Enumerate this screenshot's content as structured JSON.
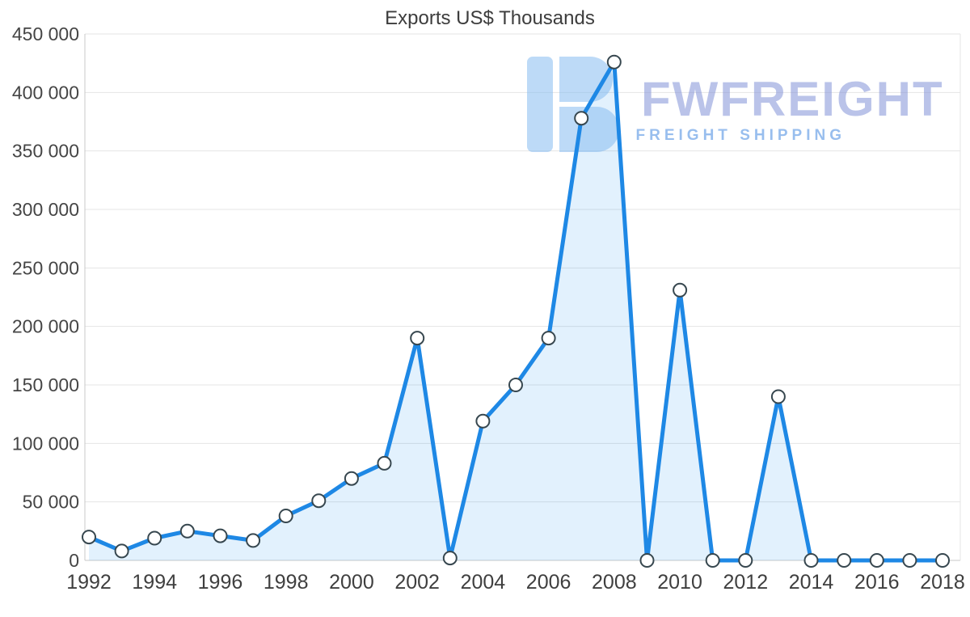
{
  "chart_data": {
    "type": "area",
    "title": "Exports US$ Thousands",
    "x": [
      1992,
      1993,
      1994,
      1995,
      1996,
      1997,
      1998,
      1999,
      2000,
      2001,
      2002,
      2003,
      2004,
      2005,
      2006,
      2007,
      2008,
      2009,
      2010,
      2011,
      2012,
      2013,
      2014,
      2015,
      2016,
      2017,
      2018
    ],
    "values": [
      20000,
      8000,
      19000,
      25000,
      21000,
      17000,
      38000,
      51000,
      70000,
      83000,
      190000,
      2000,
      119000,
      150000,
      190000,
      378000,
      426000,
      0,
      231000,
      0,
      0,
      140000,
      0,
      0,
      0,
      0,
      0
    ],
    "x_ticks": [
      1992,
      1994,
      1996,
      1998,
      2000,
      2002,
      2004,
      2006,
      2008,
      2010,
      2012,
      2014,
      2016,
      2018
    ],
    "y_ticks": [
      0,
      50000,
      100000,
      150000,
      200000,
      250000,
      300000,
      350000,
      400000,
      450000
    ],
    "y_tick_labels": [
      "0",
      "50 000",
      "100 000",
      "150 000",
      "200 000",
      "250 000",
      "300 000",
      "350 000",
      "400 000",
      "450 000"
    ],
    "ylim": [
      0,
      450000
    ],
    "xlabel": "",
    "ylabel": "",
    "grid": "horizontal",
    "legend": "none",
    "colors": {
      "line": "#1e88e5",
      "area": "rgba(33, 150, 243, 0.13)",
      "marker_fill": "#ffffff",
      "marker_stroke": "#37474f",
      "grid": "#e4e4e4",
      "axis": "#c9c9c9"
    }
  },
  "watermark": {
    "brand": "FWFREIGHT",
    "tagline": "FREIGHT SHIPPING"
  }
}
